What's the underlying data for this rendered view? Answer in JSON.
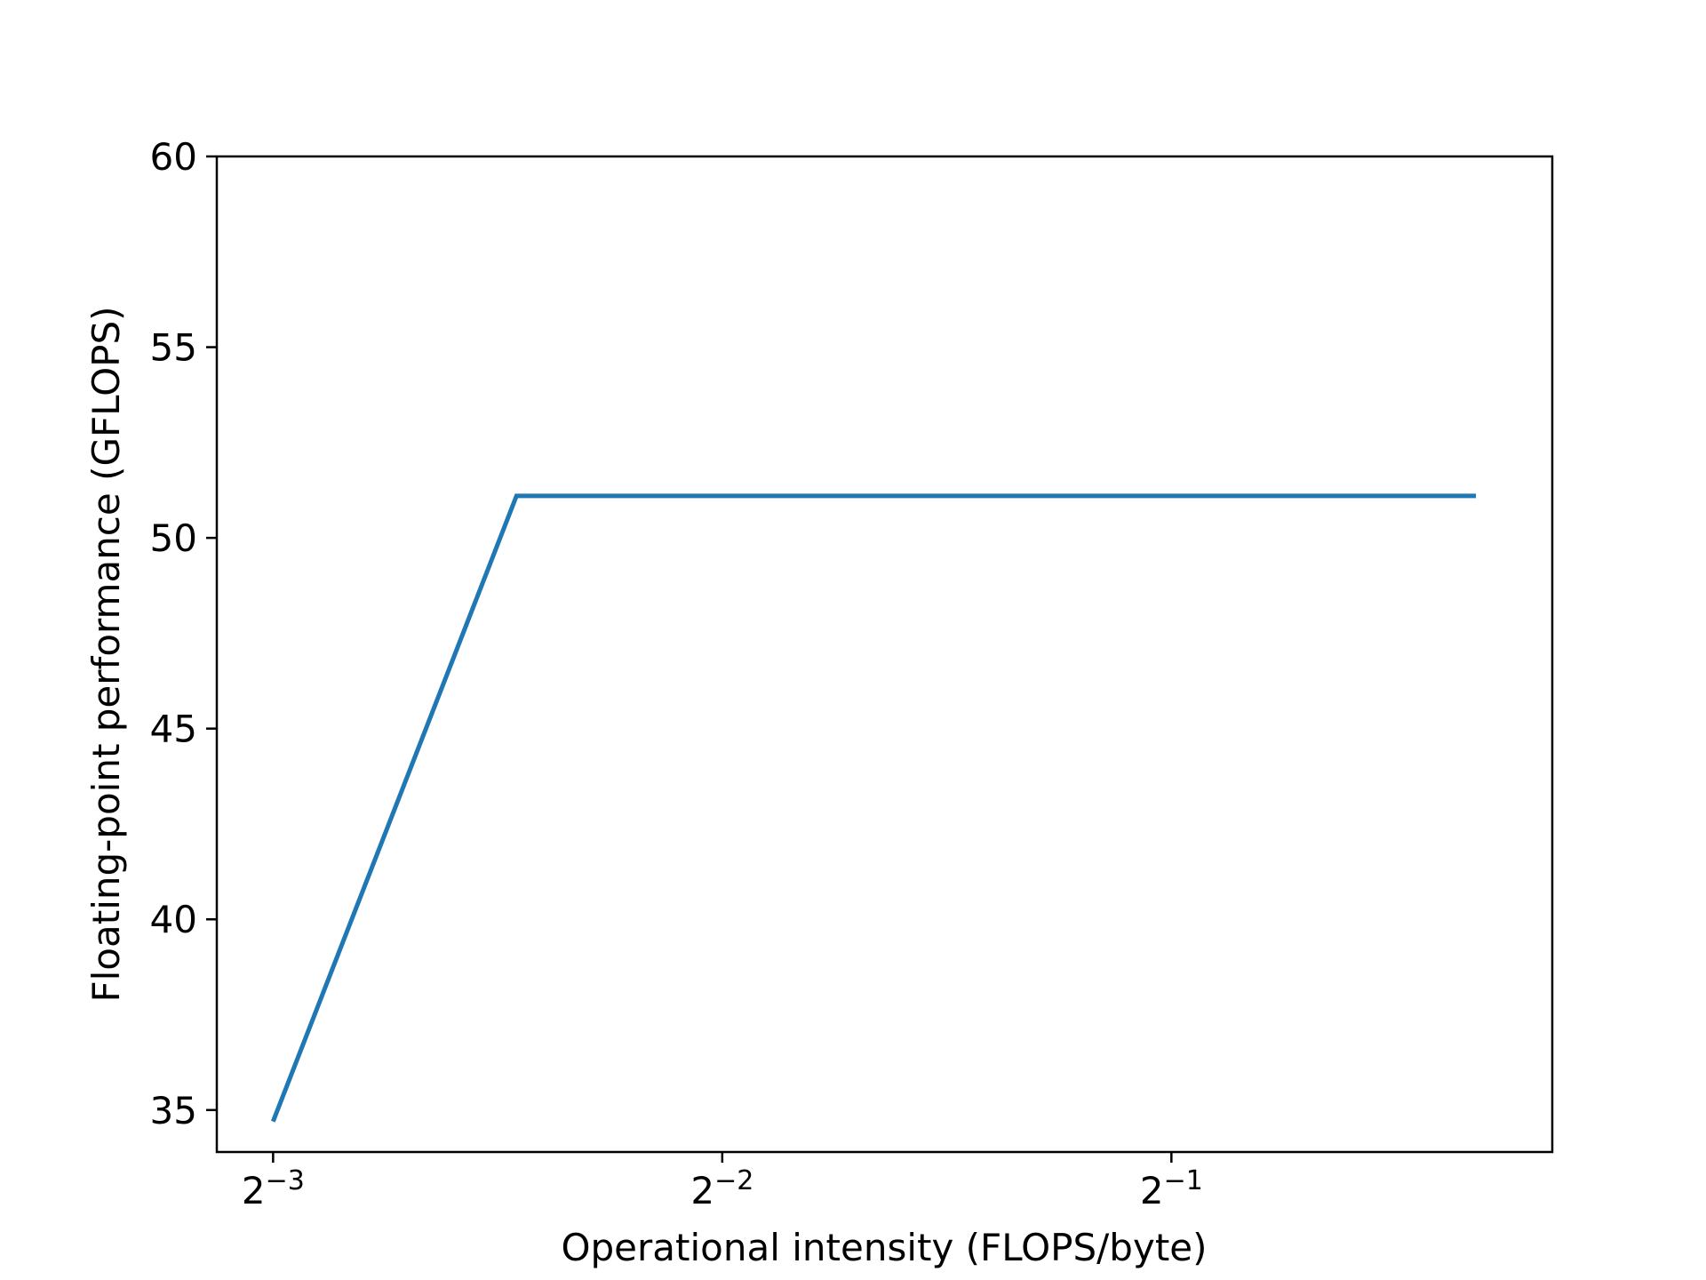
{
  "chart_data": {
    "type": "line",
    "xlabel": "Operational intensity (FLOPS/byte)",
    "ylabel": "Floating-point performance (GFLOPS)",
    "x_scale": "log2",
    "x_ticks": [
      {
        "value": 0.125,
        "base": "2",
        "exponent": "−3"
      },
      {
        "value": 0.25,
        "base": "2",
        "exponent": "−2"
      },
      {
        "value": 0.5,
        "base": "2",
        "exponent": "−1"
      }
    ],
    "xlim": [
      0.1146,
      0.9
    ],
    "y_ticks": [
      35,
      40,
      45,
      50,
      55,
      60
    ],
    "ylim": [
      33.9,
      60
    ],
    "grid": false,
    "series": [
      {
        "color": "#1f77b4",
        "x": [
          0.125,
          0.182,
          0.8
        ],
        "y": [
          34.7,
          51.1,
          51.1
        ]
      }
    ]
  }
}
